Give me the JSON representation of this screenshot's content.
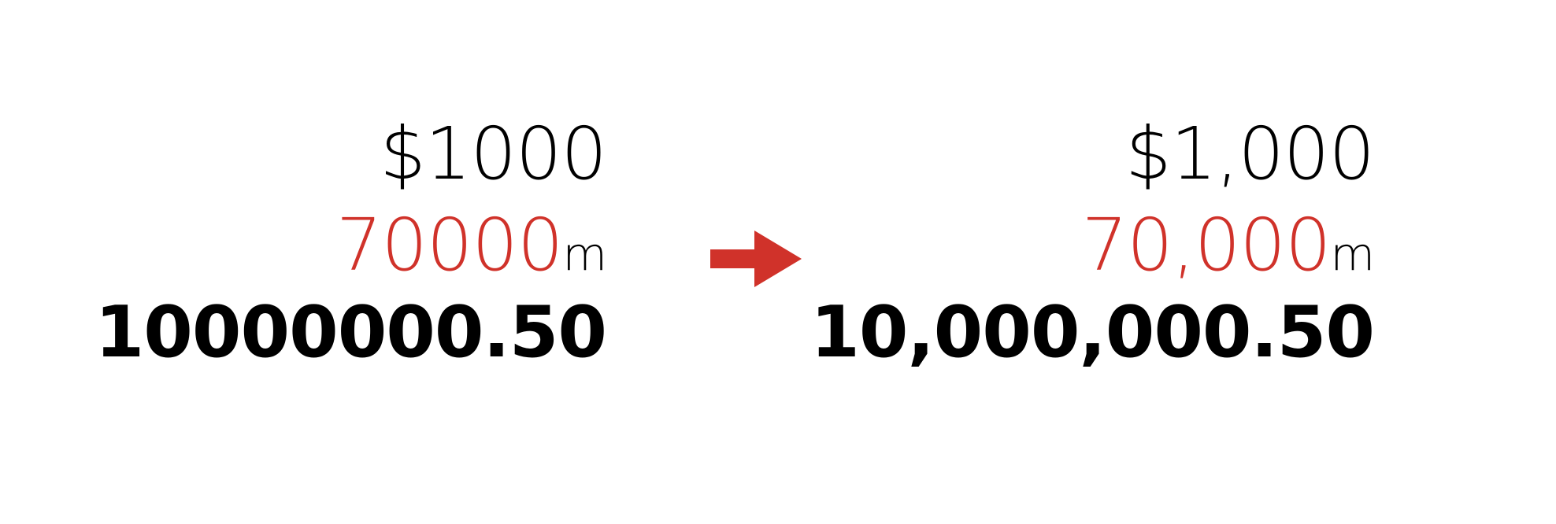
{
  "before": {
    "price": "$1000",
    "distance_value": "70000",
    "distance_unit": "m",
    "amount": "10000000.50"
  },
  "after": {
    "price": "$1,000",
    "distance_value": "70,000",
    "distance_unit": "m",
    "amount": "10,000,000.50"
  },
  "colors": {
    "accent": "#d0322a",
    "text": "#000000",
    "background": "#ffffff"
  },
  "arrow_icon": "arrow-right-icon"
}
